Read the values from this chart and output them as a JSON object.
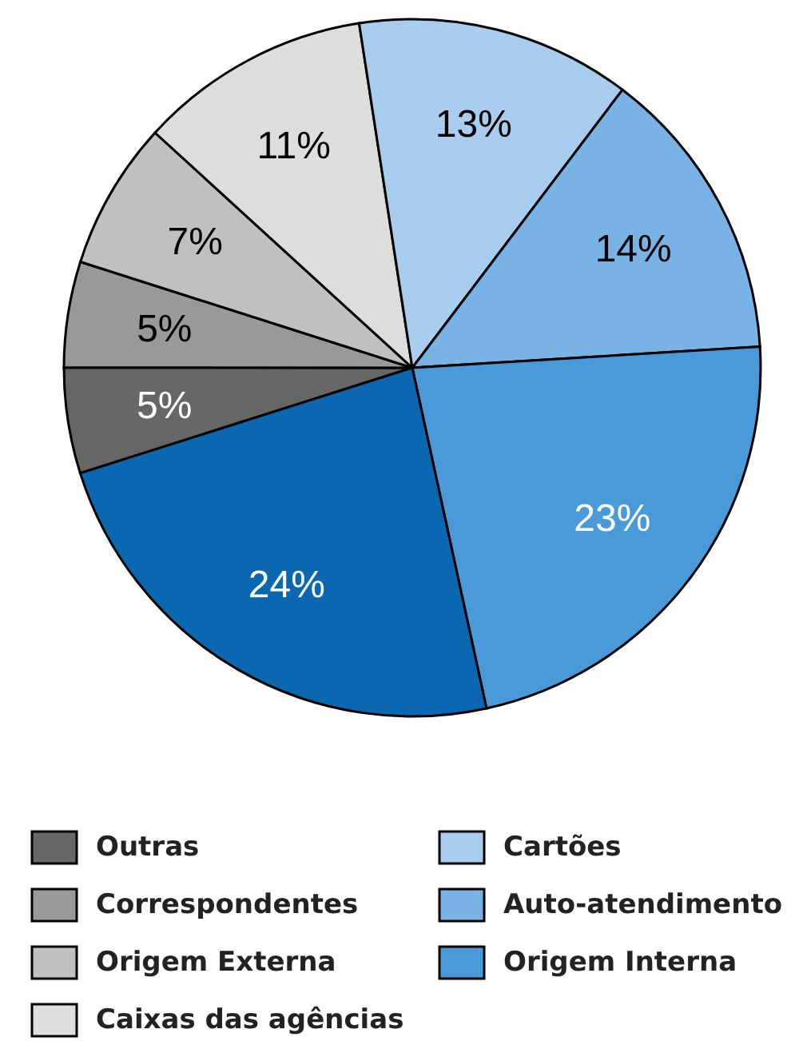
{
  "chart_data": {
    "type": "pie",
    "categories": [
      "Outras",
      "Correspondentes",
      "Origem Externa",
      "Caixas das agências",
      "Cartões",
      "Auto-atendimento",
      "Origem Interna",
      null
    ],
    "values": [
      5,
      5,
      7,
      11,
      13,
      14,
      23,
      24
    ],
    "colors": [
      "#666666",
      "#999999",
      "#c0c0c0",
      "#dddddd",
      "#a9cdee",
      "#79b3e6",
      "#4a9ad9",
      "#0b68b0"
    ],
    "value_labels": [
      "5%",
      "5%",
      "7%",
      "11%",
      "13%",
      "14%",
      "23%",
      "24%"
    ],
    "legend": "bottom"
  }
}
